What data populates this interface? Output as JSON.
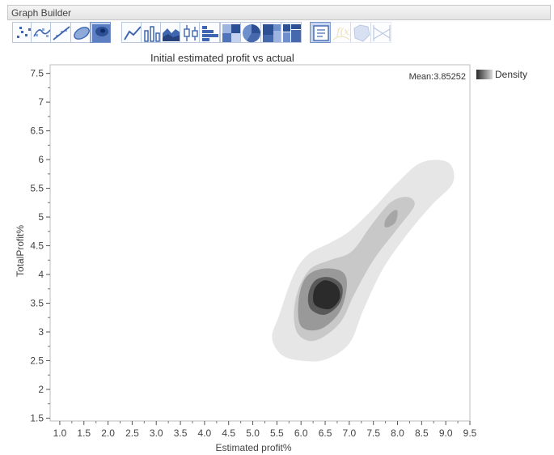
{
  "window": {
    "title": "Graph Builder"
  },
  "toolbar": {
    "buttons": [
      {
        "icon": "points-icon",
        "state": "normal"
      },
      {
        "icon": "smoother-icon",
        "state": "normal"
      },
      {
        "icon": "line-of-fit-icon",
        "state": "normal"
      },
      {
        "icon": "ellipse-icon",
        "state": "normal"
      },
      {
        "icon": "contour-icon",
        "state": "active"
      },
      {
        "icon": "line-icon",
        "state": "normal"
      },
      {
        "icon": "bar-icon",
        "state": "normal"
      },
      {
        "icon": "area-icon",
        "state": "normal"
      },
      {
        "icon": "box-plot-icon",
        "state": "normal"
      },
      {
        "icon": "histogram-icon",
        "state": "normal"
      },
      {
        "icon": "heatmap-icon",
        "state": "normal"
      },
      {
        "icon": "pie-icon",
        "state": "normal"
      },
      {
        "icon": "treemap-icon",
        "state": "normal"
      },
      {
        "icon": "mosaic-icon",
        "state": "normal"
      },
      {
        "icon": "caption-box-icon",
        "state": "active"
      },
      {
        "icon": "formula-icon",
        "state": "disabled"
      },
      {
        "icon": "map-shapes-icon",
        "state": "disabled"
      },
      {
        "icon": "parallel-icon",
        "state": "disabled"
      }
    ]
  },
  "chart_data": {
    "type": "contour",
    "title": "Initial estimated profit vs actual",
    "xlabel": "Estimated profit%",
    "ylabel": "TotalProfit%",
    "xlim": [
      0.8,
      9.5
    ],
    "ylim": [
      1.45,
      7.65
    ],
    "xticks": [
      "1.0",
      "1.5",
      "2.0",
      "2.5",
      "3.0",
      "3.5",
      "4.0",
      "4.5",
      "5.0",
      "5.5",
      "6.0",
      "6.5",
      "7.0",
      "7.5",
      "8.0",
      "8.5",
      "9.0",
      "9.5"
    ],
    "yticks": [
      "1.5",
      "2",
      "2.5",
      "3",
      "3.5",
      "4",
      "4.5",
      "5",
      "5.5",
      "6",
      "6.5",
      "7",
      "7.5"
    ],
    "legend": {
      "label": "Density",
      "placement": "right"
    },
    "annotation": {
      "text": "Mean:3.85252"
    },
    "density_levels": [
      {
        "level": 1,
        "color": "#e6e6e6",
        "polygon": [
          [
            5.6,
            2.6
          ],
          [
            6.0,
            2.5
          ],
          [
            6.5,
            2.52
          ],
          [
            7.0,
            2.8
          ],
          [
            7.3,
            3.4
          ],
          [
            7.7,
            4.1
          ],
          [
            8.2,
            4.7
          ],
          [
            8.7,
            5.2
          ],
          [
            9.15,
            5.6
          ],
          [
            9.05,
            5.95
          ],
          [
            8.5,
            5.95
          ],
          [
            8.0,
            5.6
          ],
          [
            7.5,
            5.15
          ],
          [
            7.0,
            4.75
          ],
          [
            6.6,
            4.55
          ],
          [
            6.15,
            4.35
          ],
          [
            5.85,
            4.0
          ],
          [
            5.55,
            3.3
          ],
          [
            5.4,
            2.9
          ]
        ]
      },
      {
        "level": 2,
        "color": "#c8c8c8",
        "polygon": [
          [
            5.95,
            2.95
          ],
          [
            6.3,
            2.85
          ],
          [
            6.8,
            3.15
          ],
          [
            7.1,
            3.65
          ],
          [
            7.5,
            4.25
          ],
          [
            8.0,
            4.8
          ],
          [
            8.35,
            5.2
          ],
          [
            8.2,
            5.35
          ],
          [
            7.85,
            5.25
          ],
          [
            7.45,
            4.85
          ],
          [
            7.05,
            4.4
          ],
          [
            6.6,
            4.25
          ],
          [
            6.2,
            4.1
          ],
          [
            5.95,
            3.75
          ],
          [
            5.85,
            3.3
          ]
        ]
      },
      {
        "level": 3,
        "color": "#999999",
        "polygon": [
          [
            6.0,
            3.1
          ],
          [
            6.4,
            3.05
          ],
          [
            6.8,
            3.35
          ],
          [
            6.95,
            3.8
          ],
          [
            6.85,
            4.05
          ],
          [
            6.45,
            4.1
          ],
          [
            6.1,
            3.95
          ],
          [
            5.95,
            3.55
          ]
        ]
      },
      {
        "level": 4,
        "color": "#595959",
        "polygon": [
          [
            6.2,
            3.4
          ],
          [
            6.5,
            3.3
          ],
          [
            6.8,
            3.5
          ],
          [
            6.85,
            3.8
          ],
          [
            6.6,
            3.95
          ],
          [
            6.3,
            3.9
          ],
          [
            6.15,
            3.65
          ]
        ]
      },
      {
        "level": 5,
        "color": "#2b2b2b",
        "polygon": [
          [
            6.32,
            3.45
          ],
          [
            6.6,
            3.4
          ],
          [
            6.8,
            3.58
          ],
          [
            6.75,
            3.8
          ],
          [
            6.5,
            3.9
          ],
          [
            6.3,
            3.78
          ],
          [
            6.25,
            3.58
          ]
        ]
      },
      {
        "level": 6,
        "color": "#a6a6a6",
        "polygon": [
          [
            7.75,
            4.82
          ],
          [
            7.95,
            4.9
          ],
          [
            8.0,
            5.1
          ],
          [
            7.9,
            5.1
          ],
          [
            7.75,
            4.95
          ]
        ]
      }
    ]
  }
}
